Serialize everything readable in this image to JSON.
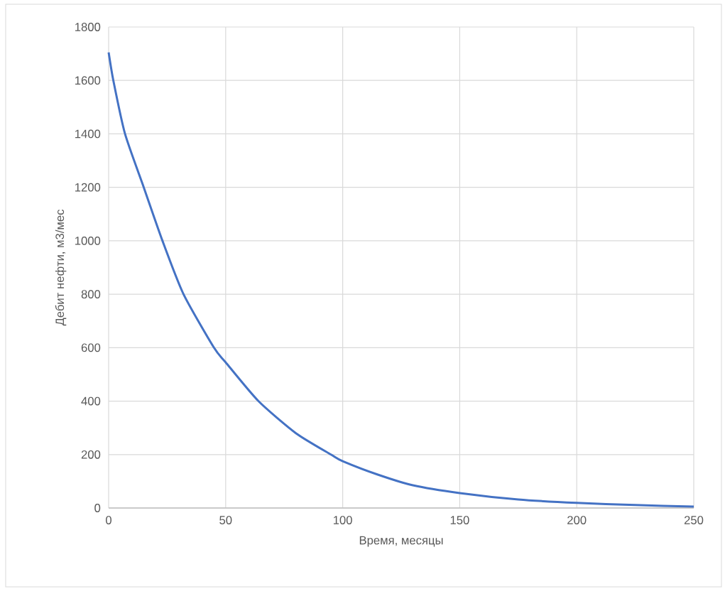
{
  "chart_data": {
    "type": "line",
    "xlabel": "Время, месяцы",
    "ylabel": "Дебит нефти, м3/мес",
    "x": [
      0,
      2,
      7,
      15,
      23,
      32,
      45,
      50,
      64,
      80,
      95,
      100,
      115,
      130,
      150,
      175,
      200,
      225,
      250
    ],
    "series": [
      {
        "color": "#4472c4",
        "values": [
          1705,
          1600,
          1400,
          1200,
          1000,
          800,
          600,
          545,
          400,
          280,
          200,
          175,
          125,
          85,
          56,
          32,
          19,
          11,
          5
        ]
      }
    ],
    "xlim": [
      0,
      250
    ],
    "ylim": [
      0,
      1800
    ],
    "xticks": [
      0,
      50,
      100,
      150,
      200,
      250
    ],
    "yticks": [
      0,
      200,
      400,
      600,
      800,
      1000,
      1200,
      1400,
      1600,
      1800
    ],
    "grid": true,
    "marker": "none",
    "line_style": "solid"
  }
}
